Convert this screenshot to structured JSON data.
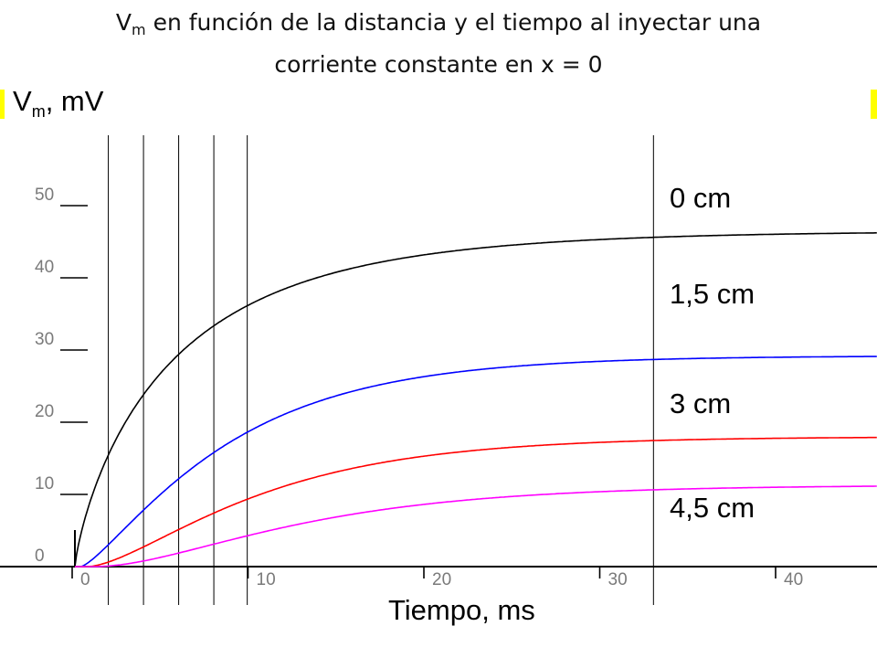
{
  "title": {
    "line1_prefix": "V",
    "line1_sub": "m",
    "line1_rest": " en función de la distancia y el tiempo al inyectar una",
    "line2": "corriente constante en x = 0"
  },
  "chart_data": {
    "type": "line",
    "xlabel": "Tiempo, ms",
    "ylabel_prefix": "V",
    "ylabel_sub": "m",
    "ylabel_rest": ", mV",
    "xlim": [
      0,
      45
    ],
    "ylim": [
      0,
      57
    ],
    "x_ticks": [
      0,
      10,
      20,
      30,
      40
    ],
    "y_ticks": [
      0,
      10,
      20,
      30,
      40,
      50
    ],
    "vertical_lines_ms": [
      1.9,
      3.9,
      5.9,
      7.9,
      9.8,
      32.9
    ],
    "grid": false,
    "series": [
      {
        "name": "0 cm",
        "color": "#000000",
        "tau_ms": 5.9,
        "steady_mV": 46.5,
        "points": [
          [
            0,
            0
          ],
          [
            2,
            21
          ],
          [
            5,
            33
          ],
          [
            10,
            40
          ],
          [
            20,
            45
          ],
          [
            30,
            46.3
          ],
          [
            45,
            46.5
          ]
        ]
      },
      {
        "name": "1,5 cm",
        "color": "#0000ff",
        "tau_ms": 7.5,
        "steady_mV": 29.2,
        "points": [
          [
            0,
            0
          ],
          [
            2,
            6
          ],
          [
            5,
            16
          ],
          [
            10,
            23
          ],
          [
            20,
            28
          ],
          [
            30,
            29
          ],
          [
            45,
            29.2
          ]
        ]
      },
      {
        "name": "3 cm",
        "color": "#ff0000",
        "tau_ms": 8.0,
        "steady_mV": 18.0,
        "points": [
          [
            0,
            0
          ],
          [
            2,
            2
          ],
          [
            5,
            7
          ],
          [
            10,
            13
          ],
          [
            20,
            16.8
          ],
          [
            30,
            17.7
          ],
          [
            45,
            18
          ]
        ]
      },
      {
        "name": "4,5 cm",
        "color": "#ff00ff",
        "tau_ms": 9.0,
        "steady_mV": 11.3,
        "points": [
          [
            0,
            0
          ],
          [
            2,
            0.8
          ],
          [
            5,
            3
          ],
          [
            10,
            6.5
          ],
          [
            20,
            10
          ],
          [
            30,
            11
          ],
          [
            45,
            11.3
          ]
        ]
      }
    ]
  },
  "colors": {
    "highlight": "#ffff00",
    "axis": "#000000",
    "tick_text": "#7a7a7a"
  }
}
